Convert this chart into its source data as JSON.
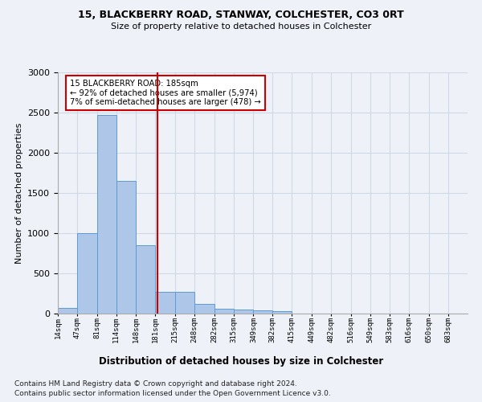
{
  "title1": "15, BLACKBERRY ROAD, STANWAY, COLCHESTER, CO3 0RT",
  "title2": "Size of property relative to detached houses in Colchester",
  "xlabel": "Distribution of detached houses by size in Colchester",
  "ylabel": "Number of detached properties",
  "footnote1": "Contains HM Land Registry data © Crown copyright and database right 2024.",
  "footnote2": "Contains public sector information licensed under the Open Government Licence v3.0.",
  "annotation_line1": "15 BLACKBERRY ROAD: 185sqm",
  "annotation_line2": "← 92% of detached houses are smaller (5,974)",
  "annotation_line3": "7% of semi-detached houses are larger (478) →",
  "property_size": 185,
  "bar_left_edges": [
    14,
    47,
    81,
    114,
    148,
    181,
    215,
    248,
    282,
    315,
    349,
    382,
    415,
    449,
    482,
    516,
    549,
    583,
    616,
    650
  ],
  "bar_widths": [
    33,
    34,
    33,
    34,
    33,
    34,
    33,
    34,
    33,
    34,
    33,
    33,
    34,
    33,
    34,
    33,
    34,
    33,
    34,
    33
  ],
  "bar_heights": [
    75,
    1000,
    2475,
    1650,
    850,
    275,
    275,
    120,
    60,
    55,
    40,
    30,
    5,
    0,
    0,
    0,
    0,
    0,
    0,
    0
  ],
  "tick_labels": [
    "14sqm",
    "47sqm",
    "81sqm",
    "114sqm",
    "148sqm",
    "181sqm",
    "215sqm",
    "248sqm",
    "282sqm",
    "315sqm",
    "349sqm",
    "382sqm",
    "415sqm",
    "449sqm",
    "482sqm",
    "516sqm",
    "549sqm",
    "583sqm",
    "616sqm",
    "650sqm",
    "683sqm"
  ],
  "bar_color": "#aec6e8",
  "bar_edge_color": "#5b9bd5",
  "vline_color": "#cc0000",
  "annotation_box_color": "#cc0000",
  "grid_color": "#d0d8e8",
  "background_color": "#eef2f8",
  "ylim": [
    0,
    3000
  ],
  "yticks": [
    0,
    500,
    1000,
    1500,
    2000,
    2500,
    3000
  ],
  "figsize": [
    6.0,
    5.0
  ],
  "dpi": 100
}
